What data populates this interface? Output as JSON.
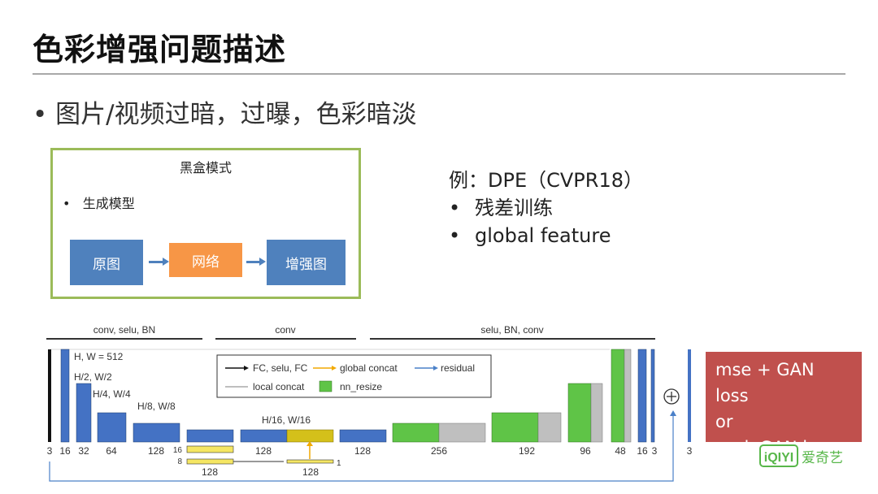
{
  "slide": {
    "title": "色彩增强问题描述",
    "bullet": "图片/视频过暗，过曝，色彩暗淡"
  },
  "black_box": {
    "title": "黑盒模式",
    "bullet": "生成模型",
    "steps": [
      "原图",
      "网络",
      "增强图"
    ],
    "colors": {
      "source": "#4f81bd",
      "network": "#f79646",
      "output": "#4f81bd",
      "border": "#9bbb59"
    }
  },
  "example": {
    "heading": "例：DPE（CVPR18）",
    "items": [
      "残差训练",
      "global feature"
    ]
  },
  "diagram": {
    "section_labels": [
      "conv, selu, BN",
      "conv",
      "selu, BN, conv"
    ],
    "level_labels": [
      "H, W = 512",
      "H/2, W/2",
      "H/4, W/4",
      "H/8, W/8",
      "H/16, W/16"
    ],
    "legend": [
      "FC, selu, FC",
      "global concat",
      "residual",
      "local concat",
      "nn_resize"
    ],
    "channel_labels": [
      "3",
      "16",
      "32",
      "64",
      "128",
      "128",
      "128",
      "128",
      "256",
      "192",
      "96",
      "48",
      "16",
      "3",
      "3"
    ],
    "bottleneck_labels": [
      "16",
      "8",
      "1",
      "128",
      "128"
    ],
    "plus_symbol": "⊕",
    "colors": {
      "conv": "#4472c4",
      "fc": "#f5e663",
      "resize": "#5fc447",
      "concat": "#bfbfbf"
    }
  },
  "loss": {
    "lines": [
      "mse + GAN loss",
      "or",
      "cycleGAN loss"
    ]
  },
  "watermark": {
    "brand": "iQIYI",
    "text": "爱奇艺"
  }
}
